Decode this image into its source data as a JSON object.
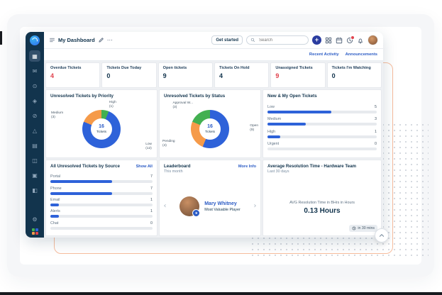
{
  "window": {
    "title": "My Dashboard"
  },
  "topbar": {
    "get_started_label": "Get started",
    "search_placeholder": "Search",
    "icons": [
      {
        "name": "add",
        "badge": false
      },
      {
        "name": "app-switcher",
        "badge": false
      },
      {
        "name": "calendar",
        "badge": false
      },
      {
        "name": "recent-activity",
        "badge": true
      },
      {
        "name": "notifications",
        "badge": false
      }
    ]
  },
  "subbar": {
    "links": [
      "Recent Activity",
      "Announcements"
    ]
  },
  "stats": [
    {
      "label": "Overdue Tickets",
      "value": "4",
      "alert": true
    },
    {
      "label": "Tickets Due Today",
      "value": "0",
      "alert": false
    },
    {
      "label": "Open tickets",
      "value": "9",
      "alert": false
    },
    {
      "label": "Tickets On Hold",
      "value": "4",
      "alert": false
    },
    {
      "label": "Unassigned Tickets",
      "value": "9",
      "alert": true
    },
    {
      "label": "Tickets I'm Watching",
      "value": "0",
      "alert": false
    }
  ],
  "chart_data": [
    {
      "type": "pie",
      "variant": "donut",
      "title": "Unresolved Tickets by Priority",
      "center_value": "16",
      "center_label": "Tickets",
      "total": 16,
      "segments": [
        {
          "label": "High",
          "value": 1,
          "color": "#43b051",
          "label_pos": "top"
        },
        {
          "label": "Low",
          "value": 12,
          "color": "#2e62d9",
          "label_pos": "bottom-right"
        },
        {
          "label": "Medium",
          "value": 3,
          "color": "#f59a49",
          "label_pos": "left"
        }
      ]
    },
    {
      "type": "pie",
      "variant": "donut",
      "title": "Unresolved Tickets by Status",
      "center_value": "16",
      "center_label": "Tickets",
      "total": 16,
      "segments": [
        {
          "label": "Open",
          "value": 9,
          "color": "#2e62d9",
          "label_pos": "right"
        },
        {
          "label": "Pending",
          "value": 4,
          "color": "#f59a49",
          "label_pos": "left-bottom"
        },
        {
          "label": "Approval W...",
          "value": 3,
          "color": "#43b051",
          "label_pos": "top-left"
        }
      ]
    },
    {
      "type": "bar",
      "orientation": "horizontal",
      "title": "New & My Open Tickets",
      "categories": [
        "Low",
        "Medium",
        "High",
        "Urgent"
      ],
      "values": [
        5,
        3,
        1,
        0
      ],
      "max": 8.6,
      "bar_color": "#2e62d9"
    },
    {
      "type": "bar",
      "orientation": "horizontal",
      "title": "All Unresolved Tickets by Source",
      "link": "Show All",
      "categories": [
        "Portal",
        "Phone",
        "Email",
        "Alerts",
        "Chat"
      ],
      "values": [
        7,
        7,
        1,
        1,
        0
      ],
      "max": 11.6,
      "bar_color": "#2e62d9"
    }
  ],
  "leaderboard": {
    "title": "Leaderboard",
    "subtitle": "This month",
    "link": "More Info",
    "winner_name": "Mary Whitney",
    "winner_title": "Most Valuable Player"
  },
  "resolution": {
    "title": "Average Resolution Time - Hardware Team",
    "subtitle": "Last 30 days",
    "metric_label": "AVG Resolution Time in BHrs in Hours",
    "metric_value": "0.13 Hours",
    "refresh_badge": "in 30 mins"
  },
  "sidebar": {
    "items": [
      {
        "name": "dashboard",
        "glyph": "▦",
        "active": true
      },
      {
        "name": "tickets",
        "glyph": "✉",
        "active": false
      },
      {
        "name": "onboarding",
        "glyph": "⊙",
        "active": false
      },
      {
        "name": "security",
        "glyph": "◈",
        "active": false
      },
      {
        "name": "explore",
        "glyph": "⊘",
        "active": false
      },
      {
        "name": "alerts",
        "glyph": "△",
        "active": false
      },
      {
        "name": "assets",
        "glyph": "▤",
        "active": false
      },
      {
        "name": "software",
        "glyph": "◫",
        "active": false
      },
      {
        "name": "solutions",
        "glyph": "▣",
        "active": false
      },
      {
        "name": "reports",
        "glyph": "◧",
        "active": false
      }
    ],
    "settings_glyph": "⚙"
  },
  "colors": {
    "accent_blue": "#2c5cc5",
    "navy": "#12344d",
    "alert_red": "#e0424d",
    "chart_blue": "#2e62d9",
    "chart_orange": "#f59a49",
    "chart_green": "#43b051",
    "sidebar_bg": "#12344d",
    "outline_orange": "#f7bd9e"
  }
}
